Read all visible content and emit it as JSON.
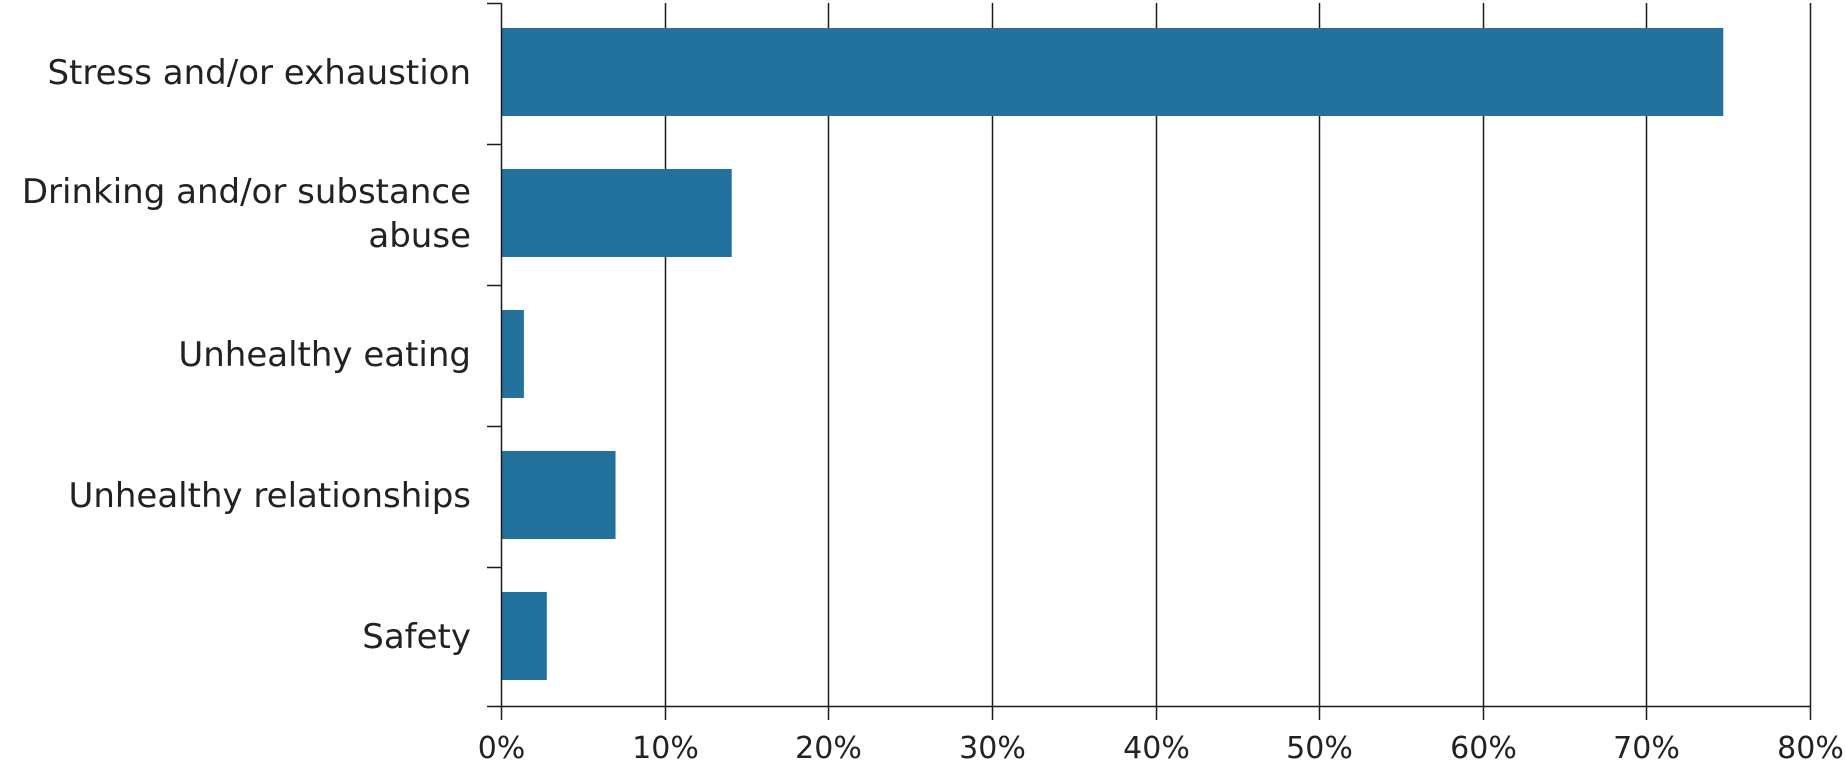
{
  "chart_data": {
    "type": "bar",
    "orientation": "horizontal",
    "categories": [
      [
        "Stress and/or exhaustion"
      ],
      [
        "Drinking and/or substance",
        "abuse"
      ],
      [
        "Unhealthy eating"
      ],
      [
        "Unhealthy relationships"
      ],
      [
        "Safety"
      ]
    ],
    "values": [
      74.7,
      14.1,
      1.4,
      7.0,
      2.8
    ],
    "xlim": [
      0,
      80
    ],
    "xticks": [
      0,
      10,
      20,
      30,
      40,
      50,
      60,
      70,
      80
    ],
    "xtick_labels": [
      "0%",
      "10%",
      "20%",
      "30%",
      "40%",
      "50%",
      "60%",
      "70%",
      "80%"
    ],
    "grid": "vertical",
    "bar_color": "#23729e",
    "title": "",
    "xlabel": "",
    "ylabel": ""
  }
}
